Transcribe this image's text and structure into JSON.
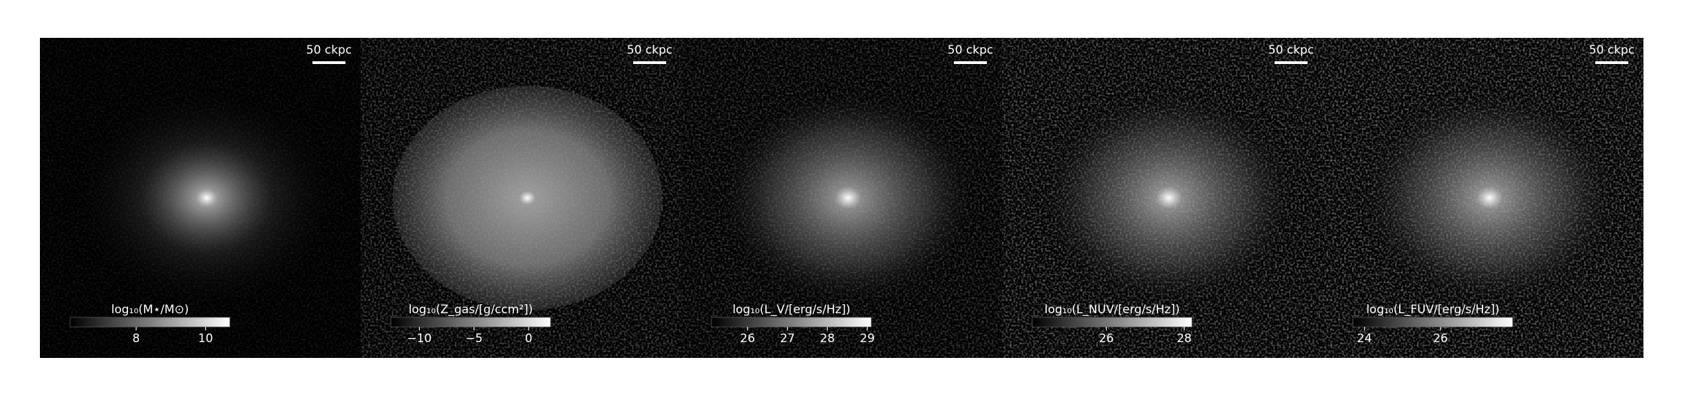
{
  "chart_data": [
    {
      "type": "image",
      "colorbar_label": "log₁₀(M⋆/M⊙)",
      "clim": [
        6.1,
        10.7
      ],
      "cticks": [
        8,
        10
      ],
      "scalebar_label": "50 ckpc"
    },
    {
      "type": "image",
      "colorbar_label": "log₁₀(Z_gas/[g/ccm²])",
      "clim": [
        -12.6,
        2.0
      ],
      "cticks": [
        {
          "value": -10,
          "label": "−10"
        },
        {
          "value": -5,
          "label": "−5"
        },
        0
      ],
      "scalebar_label": "50 ckpc"
    },
    {
      "type": "image",
      "colorbar_label": "log₁₀(L_V/[erg/s/Hz])",
      "clim": [
        25.1,
        29.1
      ],
      "cticks": [
        26,
        27,
        28,
        29
      ],
      "scalebar_label": "50 ckpc"
    },
    {
      "type": "image",
      "colorbar_label": "log₁₀(L_NUV/[erg/s/Hz])",
      "clim": [
        24.1,
        28.2
      ],
      "cticks": [
        26,
        28
      ],
      "scalebar_label": "50 ckpc"
    },
    {
      "type": "image",
      "colorbar_label": "log₁₀(L_FUV/[erg/s/Hz])",
      "clim": [
        23.7,
        27.9
      ],
      "cticks": [
        24,
        26
      ],
      "scalebar_label": "50 ckpc"
    }
  ]
}
